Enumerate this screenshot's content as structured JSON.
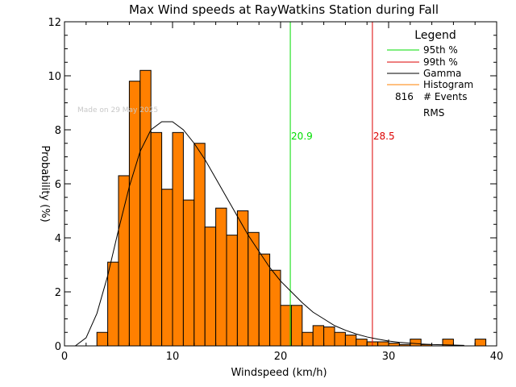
{
  "chart_data": {
    "type": "bar",
    "title": "Max Wind speeds at RayWatkins Station during Fall",
    "xlabel": "Windspeed (km/h)",
    "ylabel": "Probability (%)",
    "xlim": [
      0,
      40
    ],
    "ylim": [
      0,
      12
    ],
    "xticks": [
      "0",
      "10",
      "20",
      "30",
      "40"
    ],
    "yticks": [
      "0",
      "2",
      "4",
      "6",
      "8",
      "10",
      "12"
    ],
    "watermark": "Made on 29 May 2025",
    "histogram": {
      "bin_width": 1,
      "bin_start": [
        3,
        4,
        5,
        6,
        7,
        8,
        9,
        10,
        11,
        12,
        13,
        14,
        15,
        16,
        17,
        18,
        19,
        20,
        21,
        22,
        23,
        24,
        25,
        26,
        27,
        28,
        29,
        30,
        31,
        32,
        33,
        34,
        35,
        36,
        37,
        38
      ],
      "values": [
        0.5,
        3.1,
        6.3,
        9.8,
        10.2,
        7.9,
        5.8,
        7.9,
        5.4,
        7.5,
        4.4,
        5.1,
        4.1,
        5.0,
        4.2,
        3.4,
        2.8,
        1.5,
        1.5,
        0.5,
        0.75,
        0.7,
        0.5,
        0.4,
        0.25,
        0.15,
        0.15,
        0.1,
        0.05,
        0.25,
        0.05,
        0.0,
        0.25,
        0.0,
        0.0,
        0.25
      ],
      "color": "#FF8000"
    },
    "gamma_curve": {
      "x": [
        1,
        2,
        3,
        4,
        5,
        6,
        7,
        8,
        9,
        10,
        11,
        12,
        13,
        14,
        15,
        16,
        17,
        18,
        19,
        20,
        21,
        22,
        23,
        24,
        25,
        26,
        27,
        28,
        29,
        30,
        31,
        32,
        33,
        34,
        35,
        36,
        37
      ],
      "y": [
        0.0,
        0.3,
        1.2,
        2.6,
        4.3,
        5.9,
        7.2,
        8.0,
        8.3,
        8.3,
        8.0,
        7.5,
        6.9,
        6.2,
        5.5,
        4.8,
        4.1,
        3.5,
        2.9,
        2.4,
        2.0,
        1.6,
        1.25,
        1.0,
        0.75,
        0.58,
        0.44,
        0.33,
        0.25,
        0.18,
        0.13,
        0.1,
        0.07,
        0.05,
        0.04,
        0.03,
        0.02
      ],
      "color": "#000000"
    },
    "percentile_lines": [
      {
        "name": "95th %",
        "x": 20.9,
        "label": "20.9",
        "color": "#00DD00"
      },
      {
        "name": "99th %",
        "x": 28.5,
        "label": "28.5",
        "color": "#DD0000"
      }
    ],
    "legend": {
      "title": "Legend",
      "placement": "top-right",
      "entries": [
        {
          "label": "95th %",
          "color": "#00DD00"
        },
        {
          "label": "99th %",
          "color": "#DD0000"
        },
        {
          "label": "Gamma",
          "color": "#000000"
        },
        {
          "label": "Histogram",
          "color": "#FF8000"
        }
      ],
      "events_count": "816",
      "events_label": "# Events",
      "rms_label": "RMS"
    }
  }
}
